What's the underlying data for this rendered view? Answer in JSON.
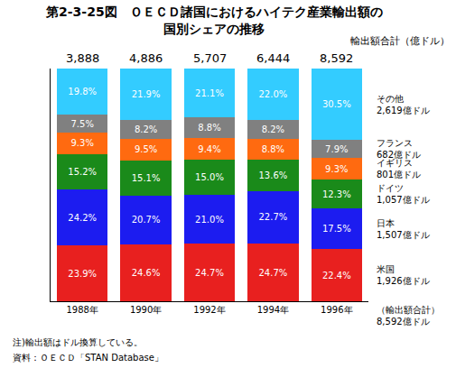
{
  "chart_data": {
    "type": "bar",
    "stacked": true,
    "title": "第2-3-25図　ＯＥＣＤ諸国におけるハイテク産業輸出額の\n国別シェアの推移",
    "totals_title": "輸出額合計（億ドル）",
    "categories": [
      "1988年",
      "1990年",
      "1992年",
      "1994年",
      "1996年"
    ],
    "totals": [
      3888,
      4886,
      5707,
      6444,
      8592
    ],
    "total_labels": [
      "3,888",
      "4,886",
      "5,707",
      "6,444",
      "8,592"
    ],
    "total_note": {
      "text": "（輸出額合計）",
      "value_label": "8,592億ドル"
    },
    "series": [
      {
        "name": "米国",
        "color": "#e8201f",
        "amount_label": "1,926億ドル",
        "values": [
          23.9,
          24.6,
          24.7,
          24.7,
          22.4
        ],
        "value_labels": [
          "23.9%",
          "24.6%",
          "24.7%",
          "24.7%",
          "22.4%"
        ]
      },
      {
        "name": "日本",
        "color": "#1c1cf0",
        "amount_label": "1,507億ドル",
        "values": [
          24.2,
          20.7,
          21.0,
          22.7,
          17.5
        ],
        "value_labels": [
          "24.2%",
          "20.7%",
          "21.0%",
          "22.7%",
          "17.5%"
        ]
      },
      {
        "name": "ドイツ",
        "color": "#1a8a1a",
        "amount_label": "1,057億ドル",
        "values": [
          15.2,
          15.1,
          15.0,
          13.6,
          12.3
        ],
        "value_labels": [
          "15.2%",
          "15.1%",
          "15.0%",
          "13.6%",
          "12.3%"
        ]
      },
      {
        "name": "イギリス",
        "color": "#ff6a10",
        "amount_label": "801億ドル",
        "values": [
          9.3,
          9.5,
          9.4,
          8.8,
          9.3
        ],
        "value_labels": [
          "9.3%",
          "9.5%",
          "9.4%",
          "8.8%",
          "9.3%"
        ]
      },
      {
        "name": "フランス",
        "color": "#808080",
        "amount_label": "682億ドル",
        "values": [
          7.5,
          8.2,
          8.8,
          8.2,
          7.9
        ],
        "value_labels": [
          "7.5%",
          "8.2%",
          "8.8%",
          "8.2%",
          "7.9%"
        ]
      },
      {
        "name": "その他",
        "color": "#33ccff",
        "amount_label": "2,619億ドル",
        "values": [
          19.8,
          21.9,
          21.1,
          22.0,
          30.5
        ],
        "value_labels": [
          "19.8%",
          "21.9%",
          "21.1%",
          "22.0%",
          "30.5%"
        ]
      }
    ],
    "ylim": [
      0,
      100
    ],
    "tick_labels": "x",
    "data_labels": true,
    "grid": false,
    "legend": "none",
    "notes": [
      "注)輸出額はドル換算している。",
      "資料：ＯＥＣＤ「STAN Database」"
    ]
  }
}
